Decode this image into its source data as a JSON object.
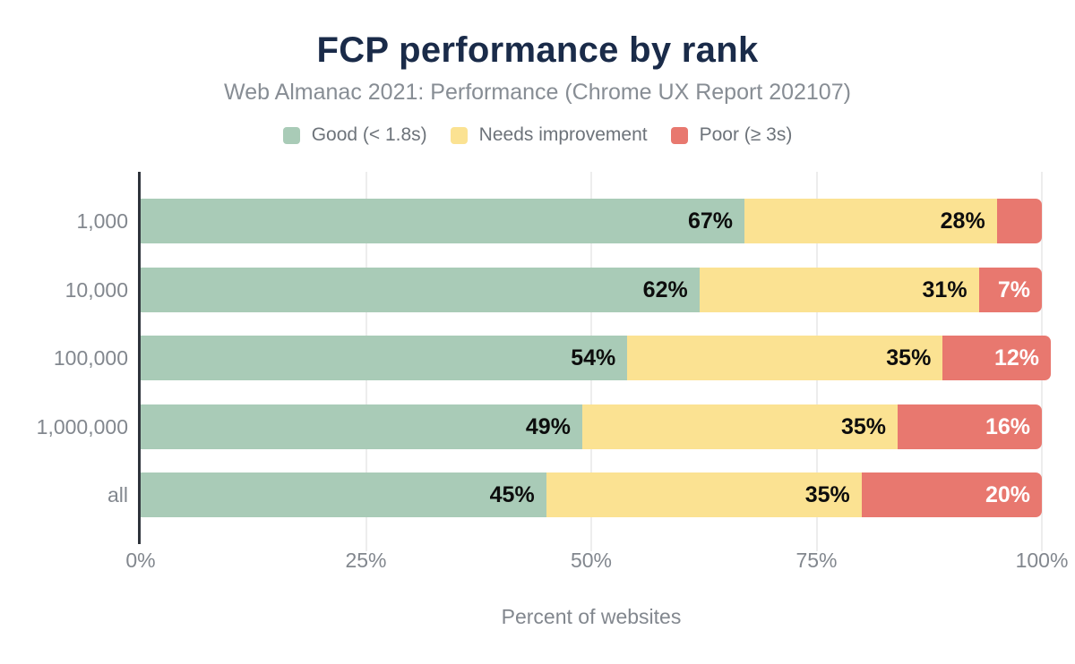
{
  "chart_data": {
    "type": "bar",
    "orientation": "horizontal",
    "stacked": true,
    "title": "FCP performance by rank",
    "subtitle": "Web Almanac 2021: Performance (Chrome UX Report 202107)",
    "xlabel": "Percent of websites",
    "categories": [
      "1,000",
      "10,000",
      "100,000",
      "1,000,000",
      "all"
    ],
    "series": [
      {
        "name": "Good (< 1.8s)",
        "color": "#a9cbb7",
        "label_color": "#0d0d0d",
        "values": [
          67,
          62,
          54,
          49,
          45
        ],
        "labels": [
          "67%",
          "62%",
          "54%",
          "49%",
          "45%"
        ]
      },
      {
        "name": "Needs improvement",
        "color": "#fbe292",
        "label_color": "#0d0d0d",
        "values": [
          28,
          31,
          35,
          35,
          35
        ],
        "labels": [
          "28%",
          "31%",
          "35%",
          "35%",
          "35%"
        ]
      },
      {
        "name": "Poor (≥ 3s)",
        "color": "#e8786f",
        "label_color": "#ffffff",
        "values": [
          5,
          7,
          12,
          16,
          20
        ],
        "labels": [
          null,
          "7%",
          "12%",
          "16%",
          "20%"
        ]
      }
    ],
    "xlim": [
      0,
      100
    ],
    "x_ticks": [
      {
        "label": "0%",
        "value": 0
      },
      {
        "label": "25%",
        "value": 25
      },
      {
        "label": "50%",
        "value": 50
      },
      {
        "label": "75%",
        "value": 75
      },
      {
        "label": "100%",
        "value": 100
      }
    ],
    "grid": "vertical",
    "legend_position": "top"
  },
  "style": {
    "title_color": "#1a2b49",
    "muted_text_color": "#82878e",
    "legend_text_color": "#6d737a",
    "axis_line_color": "#2e333b",
    "gridline_color": "#ededed",
    "background": "#ffffff"
  }
}
